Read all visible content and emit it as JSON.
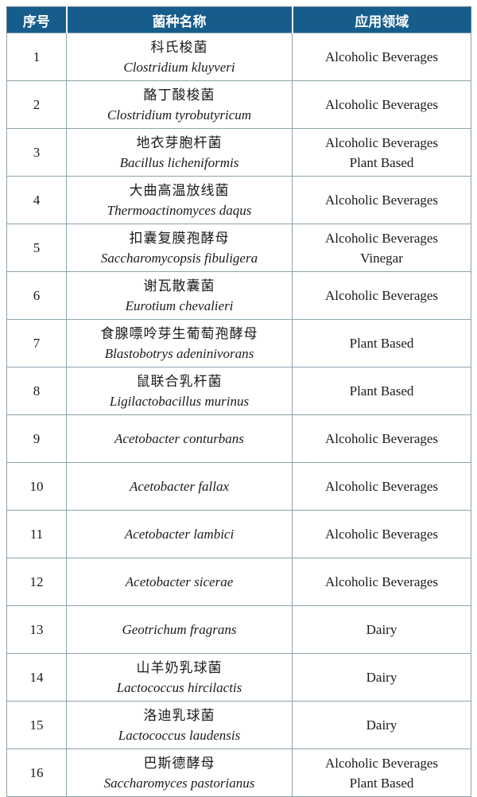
{
  "colors": {
    "header_background": "#175d8c",
    "header_text": "#ffffff",
    "grid_border": "#8ba3ab",
    "outer_border": "#5f7a84",
    "body_text": "#1a1a1a",
    "page_background": "#ffffff"
  },
  "table": {
    "headers": [
      "序号",
      "菌种名称",
      "应用领域"
    ],
    "rows": [
      {
        "num": "1",
        "name_cn": "科氏梭菌",
        "name_latin": "Clostridium kluyveri",
        "applications": [
          "Alcoholic Beverages"
        ]
      },
      {
        "num": "2",
        "name_cn": "酪丁酸梭菌",
        "name_latin": "Clostridium tyrobutyricum",
        "applications": [
          "Alcoholic Beverages"
        ]
      },
      {
        "num": "3",
        "name_cn": "地衣芽胞杆菌",
        "name_latin": "Bacillus licheniformis",
        "applications": [
          "Alcoholic Beverages",
          "Plant Based"
        ]
      },
      {
        "num": "4",
        "name_cn": "大曲高温放线菌",
        "name_latin": "Thermoactinomyces daqus",
        "applications": [
          "Alcoholic Beverages"
        ]
      },
      {
        "num": "5",
        "name_cn": "扣囊复膜孢酵母",
        "name_latin": "Saccharomycopsis fibuligera",
        "applications": [
          "Alcoholic Beverages",
          "Vinegar"
        ]
      },
      {
        "num": "6",
        "name_cn": "谢瓦散囊菌",
        "name_latin": "Eurotium chevalieri",
        "applications": [
          "Alcoholic Beverages"
        ]
      },
      {
        "num": "7",
        "name_cn": "食腺嘌呤芽生葡萄孢酵母",
        "name_latin": "Blastobotrys adeninivorans",
        "applications": [
          "Plant Based"
        ]
      },
      {
        "num": "8",
        "name_cn": "鼠联合乳杆菌",
        "name_latin": "Ligilactobacillus murinus",
        "applications": [
          "Plant Based"
        ]
      },
      {
        "num": "9",
        "name_cn": "",
        "name_latin": "Acetobacter conturbans",
        "applications": [
          "Alcoholic Beverages"
        ]
      },
      {
        "num": "10",
        "name_cn": "",
        "name_latin": "Acetobacter fallax",
        "applications": [
          "Alcoholic Beverages"
        ]
      },
      {
        "num": "11",
        "name_cn": "",
        "name_latin": "Acetobacter lambici",
        "applications": [
          "Alcoholic Beverages"
        ]
      },
      {
        "num": "12",
        "name_cn": "",
        "name_latin": "Acetobacter sicerae",
        "applications": [
          "Alcoholic Beverages"
        ]
      },
      {
        "num": "13",
        "name_cn": "",
        "name_latin": "Geotrichum fragrans",
        "applications": [
          "Dairy"
        ]
      },
      {
        "num": "14",
        "name_cn": "山羊奶乳球菌",
        "name_latin": "Lactococcus hircilactis",
        "applications": [
          "Dairy"
        ]
      },
      {
        "num": "15",
        "name_cn": "洛迪乳球菌",
        "name_latin": "Lactococcus laudensis",
        "applications": [
          "Dairy"
        ]
      },
      {
        "num": "16",
        "name_cn": "巴斯德酵母",
        "name_latin": "Saccharomyces pastorianus",
        "applications": [
          "Alcoholic Beverages",
          "Plant Based"
        ]
      }
    ]
  }
}
